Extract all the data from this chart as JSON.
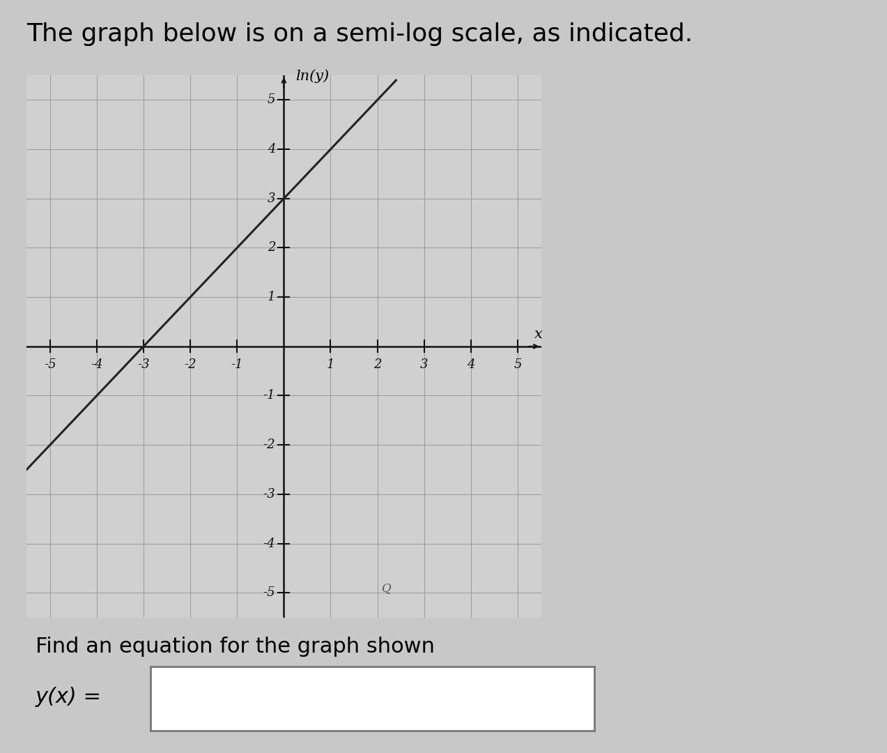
{
  "title": "The graph below is on a semi-log scale, as indicated.",
  "title_fontsize": 26,
  "xlabel": "x",
  "ylabel": "ln(y)",
  "xlim": [
    -5.5,
    5.5
  ],
  "ylim": [
    -5.5,
    5.5
  ],
  "xticks": [
    -5,
    -4,
    -3,
    -2,
    -1,
    1,
    2,
    3,
    4,
    5
  ],
  "yticks": [
    -5,
    -4,
    -3,
    -2,
    -1,
    1,
    2,
    3,
    4,
    5
  ],
  "line_x": [
    -5.5,
    2.4
  ],
  "line_y": [
    -2.5,
    5.4
  ],
  "line_color": "#222222",
  "line_width": 2.2,
  "grid_color": "#999999",
  "grid_linewidth": 0.7,
  "axis_color": "#111111",
  "bg_color": "#c8c8c8",
  "plot_bg_color": "#d0d0d0",
  "find_eq_text": "Find an equation for the graph shown",
  "find_eq_fontsize": 22,
  "yx_label": "y(x) =",
  "yx_fontsize": 22
}
